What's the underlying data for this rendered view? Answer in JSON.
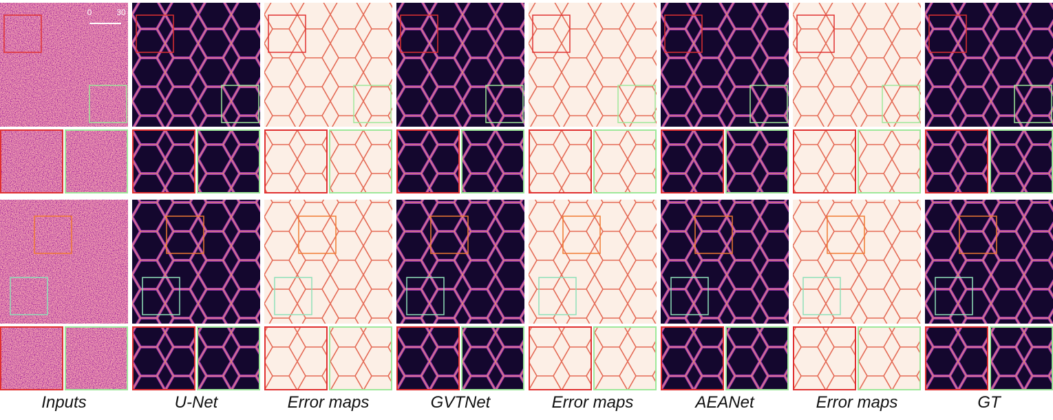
{
  "scale_bar": {
    "start": "0",
    "end": "30"
  },
  "columns": [
    {
      "label": "Inputs"
    },
    {
      "label": "U-Net"
    },
    {
      "label": "Error maps"
    },
    {
      "label": "GVTNet"
    },
    {
      "label": "Error maps"
    },
    {
      "label": "AEANet"
    },
    {
      "label": "Error maps"
    },
    {
      "label": "GT"
    }
  ]
}
